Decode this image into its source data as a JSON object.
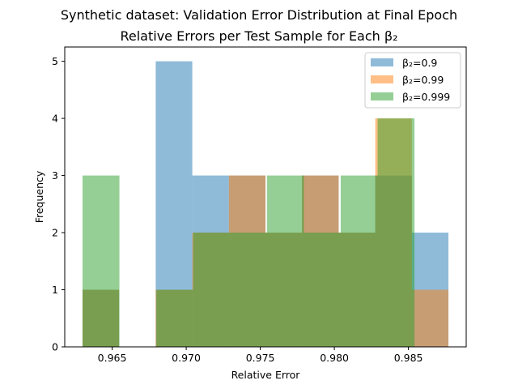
{
  "chart_data": {
    "type": "histogram",
    "title": "Synthetic dataset: Validation Error Distribution at Final Epoch",
    "subtitle": "Relative Errors per Test Sample for Each β₂",
    "xlabel": "Relative Error",
    "ylabel": "Frequency",
    "xlim": [
      0.9618,
      0.9889
    ],
    "ylim": [
      0,
      5.25
    ],
    "xticks": [
      0.965,
      0.97,
      0.975,
      0.98,
      0.985
    ],
    "xtick_labels": [
      "0.965",
      "0.970",
      "0.975",
      "0.980",
      "0.985"
    ],
    "yticks": [
      0,
      1,
      2,
      3,
      4,
      5
    ],
    "ytick_labels": [
      "0",
      "1",
      "2",
      "3",
      "4",
      "5"
    ],
    "grid": false,
    "legend_position": "upper right",
    "bar_alpha": 0.5,
    "series": [
      {
        "name": "β₂=0.9",
        "color": "#1f77b4",
        "bins": [
          {
            "x0": 0.963,
            "x1": 0.96547,
            "count": 1
          },
          {
            "x0": 0.96547,
            "x1": 0.96794,
            "count": 0
          },
          {
            "x0": 0.96794,
            "x1": 0.97041,
            "count": 5
          },
          {
            "x0": 0.97041,
            "x1": 0.97288,
            "count": 3
          },
          {
            "x0": 0.97288,
            "x1": 0.97535,
            "count": 3
          },
          {
            "x0": 0.97535,
            "x1": 0.97782,
            "count": 2
          },
          {
            "x0": 0.97782,
            "x1": 0.98029,
            "count": 3
          },
          {
            "x0": 0.98029,
            "x1": 0.98276,
            "count": 2
          },
          {
            "x0": 0.98276,
            "x1": 0.98523,
            "count": 3
          },
          {
            "x0": 0.98523,
            "x1": 0.9877,
            "count": 2
          }
        ]
      },
      {
        "name": "β₂=0.99",
        "color": "#ff7f0e",
        "bins": [
          {
            "x0": 0.963,
            "x1": 0.96547,
            "count": 1
          },
          {
            "x0": 0.96547,
            "x1": 0.96794,
            "count": 0
          },
          {
            "x0": 0.96794,
            "x1": 0.97041,
            "count": 1
          },
          {
            "x0": 0.97041,
            "x1": 0.97288,
            "count": 2
          },
          {
            "x0": 0.97288,
            "x1": 0.97535,
            "count": 3
          },
          {
            "x0": 0.97535,
            "x1": 0.97782,
            "count": 2
          },
          {
            "x0": 0.97782,
            "x1": 0.98029,
            "count": 3
          },
          {
            "x0": 0.98029,
            "x1": 0.98276,
            "count": 2
          },
          {
            "x0": 0.98276,
            "x1": 0.98523,
            "count": 4
          },
          {
            "x0": 0.98523,
            "x1": 0.9877,
            "count": 1
          }
        ]
      },
      {
        "name": "β₂=0.999",
        "color": "#2ca02c",
        "bins": [
          {
            "x0": 0.963,
            "x1": 0.96549,
            "count": 3
          },
          {
            "x0": 0.96549,
            "x1": 0.96798,
            "count": 0
          },
          {
            "x0": 0.96798,
            "x1": 0.97047,
            "count": 1
          },
          {
            "x0": 0.97047,
            "x1": 0.97296,
            "count": 2
          },
          {
            "x0": 0.97296,
            "x1": 0.97545,
            "count": 2
          },
          {
            "x0": 0.97545,
            "x1": 0.97794,
            "count": 3
          },
          {
            "x0": 0.97794,
            "x1": 0.98043,
            "count": 2
          },
          {
            "x0": 0.98043,
            "x1": 0.98292,
            "count": 3
          },
          {
            "x0": 0.98292,
            "x1": 0.98541,
            "count": 4
          },
          {
            "x0": 0.98541,
            "x1": 0.9879,
            "count": 0
          }
        ]
      }
    ]
  }
}
